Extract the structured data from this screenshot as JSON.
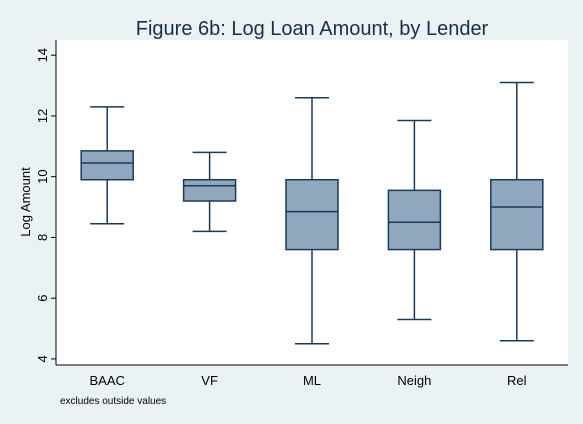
{
  "chart_data": {
    "type": "box",
    "title": "Figure 6b: Log Loan Amount, by Lender",
    "ylabel": "Log Amount",
    "xlabel": "",
    "ylim": [
      3.8,
      14.5
    ],
    "yticks": [
      4,
      6,
      8,
      10,
      12,
      14
    ],
    "note": "excludes outside values",
    "grid": false,
    "categories": [
      "BAAC",
      "VF",
      "ML",
      "Neigh",
      "Rel"
    ],
    "boxes": [
      {
        "category": "BAAC",
        "min": 8.45,
        "q1": 9.9,
        "median": 10.45,
        "q3": 10.85,
        "max": 12.3
      },
      {
        "category": "VF",
        "min": 8.2,
        "q1": 9.2,
        "median": 9.7,
        "q3": 9.9,
        "max": 10.8
      },
      {
        "category": "ML",
        "min": 4.5,
        "q1": 7.6,
        "median": 8.85,
        "q3": 9.9,
        "max": 12.6
      },
      {
        "category": "Neigh",
        "min": 5.3,
        "q1": 7.6,
        "median": 8.5,
        "q3": 9.55,
        "max": 11.85
      },
      {
        "category": "Rel",
        "min": 4.6,
        "q1": 7.6,
        "median": 9.0,
        "q3": 9.9,
        "max": 13.1
      }
    ],
    "colors": {
      "background": "#eaf2f3",
      "plot_background": "#ffffff",
      "box_fill": "#90a8be",
      "box_stroke": "#1a3a5c",
      "title": "#1a2e4a"
    }
  }
}
